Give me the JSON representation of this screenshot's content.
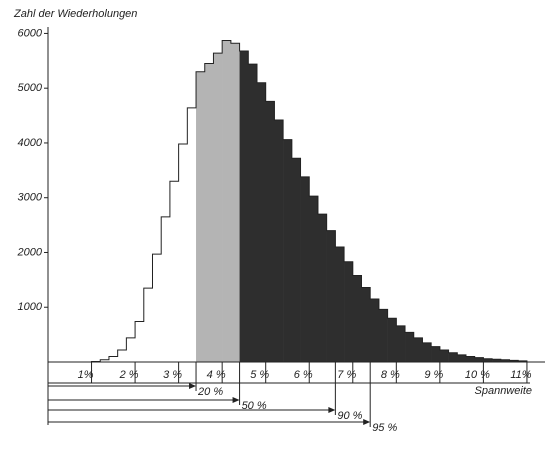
{
  "chart_data": {
    "type": "histogram",
    "y_label": "Zahl der Wiederholungen",
    "x_label": "Spannweite",
    "bins": [
      1.0,
      1.2,
      1.4,
      1.6,
      1.8,
      2.0,
      2.2,
      2.4,
      2.6,
      2.8,
      3.0,
      3.2,
      3.4,
      3.6,
      3.8,
      4.0,
      4.2,
      4.4,
      4.6,
      4.8,
      5.0,
      5.2,
      5.4,
      5.6,
      5.8,
      6.0,
      6.2,
      6.4,
      6.6,
      6.8,
      7.0,
      7.2,
      7.4,
      7.6,
      7.8,
      8.0,
      8.2,
      8.4,
      8.6,
      8.8,
      9.0,
      9.2,
      9.4,
      9.6,
      9.8,
      10.0,
      10.2,
      10.4,
      10.6,
      10.8,
      11.0
    ],
    "values": [
      10,
      40,
      100,
      220,
      440,
      740,
      1350,
      1970,
      2650,
      3300,
      3980,
      4640,
      5300,
      5450,
      5640,
      5870,
      5820,
      5680,
      5440,
      5100,
      4760,
      4420,
      4060,
      3720,
      3380,
      3030,
      2700,
      2400,
      2100,
      1830,
      1580,
      1360,
      1150,
      960,
      800,
      660,
      540,
      440,
      350,
      280,
      220,
      170,
      130,
      100,
      80,
      60,
      50,
      40,
      30,
      20
    ],
    "region_colors": [
      "#ffffff",
      "#b4b4b4",
      "#2e2e2e"
    ],
    "percentile_markers": [
      {
        "label": "20 %",
        "x": 3.4
      },
      {
        "label": "50 %",
        "x": 4.4
      },
      {
        "label": "90 %",
        "x": 6.6
      },
      {
        "label": "95 %",
        "x": 7.4
      }
    ],
    "xlim": [
      0,
      11.3
    ],
    "ylim": [
      0,
      6300
    ],
    "xticks": [
      {
        "value": 1,
        "label": "1%"
      },
      {
        "value": 2,
        "label": "2 %"
      },
      {
        "value": 3,
        "label": "3 %"
      },
      {
        "value": 4,
        "label": "4 %"
      },
      {
        "value": 5,
        "label": "5 %"
      },
      {
        "value": 6,
        "label": "6 %"
      },
      {
        "value": 7,
        "label": "7 %"
      },
      {
        "value": 8,
        "label": "8 %"
      },
      {
        "value": 9,
        "label": "9 %"
      },
      {
        "value": 10,
        "label": "10 %"
      },
      {
        "value": 11,
        "label": "11%"
      }
    ],
    "yticks": [
      1000,
      2000,
      3000,
      4000,
      5000,
      6000
    ]
  }
}
